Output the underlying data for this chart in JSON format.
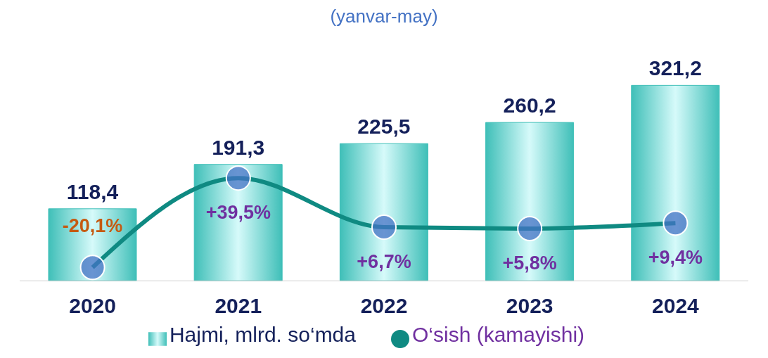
{
  "chart_data": {
    "type": "bar",
    "title": "(yanvar-may)",
    "categories": [
      "2020",
      "2021",
      "2022",
      "2023",
      "2024"
    ],
    "series": [
      {
        "name": "Hajmi, mlrd. so‘mda",
        "color": "#3fbfb8",
        "values": [
          118.4,
          191.3,
          225.5,
          260.2,
          321.2
        ],
        "value_labels": [
          "118,4",
          "191,3",
          "225,5",
          "260,2",
          "321,2"
        ]
      },
      {
        "name": "O‘sish (kamayishi)",
        "type": "line",
        "axis": "y2",
        "color": "#0f8a82",
        "values": [
          -20.1,
          39.5,
          6.7,
          5.8,
          9.4
        ],
        "value_labels": [
          "-20,1%",
          "+39,5%",
          "+6,7%",
          "+5,8%",
          "+9,4%"
        ]
      }
    ],
    "relative": false,
    "marker": "circle",
    "legend": "bottom"
  }
}
